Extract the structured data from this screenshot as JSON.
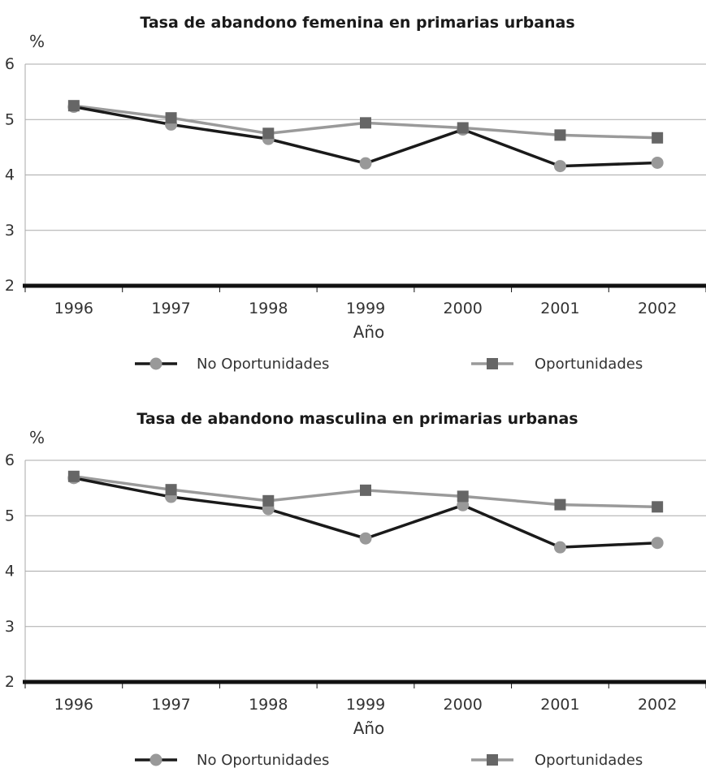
{
  "colors": {
    "no_oportunidades_line": "#1a1a1a",
    "no_oportunidades_marker": "#999999",
    "oportunidades_line": "#9a9a9a",
    "oportunidades_marker": "#666666",
    "gridline": "#aaaaaa",
    "axis": "#111111"
  },
  "chart_data": [
    {
      "type": "line",
      "title": "Tasa de abandono femenina en primarias urbanas",
      "ylabel": "%",
      "xlabel": "Año",
      "categories": [
        "1996",
        "1997",
        "1998",
        "1999",
        "2000",
        "2001",
        "2002"
      ],
      "ylim": [
        2,
        6
      ],
      "yticks": [
        "2",
        "3",
        "4",
        "5",
        "6"
      ],
      "grid": true,
      "legend_position": "bottom",
      "series": [
        {
          "name": "No Oportunidades",
          "marker": "circle",
          "values": [
            5.23,
            4.91,
            4.65,
            4.21,
            4.82,
            4.16,
            4.22
          ]
        },
        {
          "name": "Oportunidades",
          "marker": "square",
          "values": [
            5.25,
            5.03,
            4.75,
            4.94,
            4.85,
            4.72,
            4.67
          ]
        }
      ]
    },
    {
      "type": "line",
      "title": "Tasa de abandono masculina en primarias urbanas",
      "ylabel": "%",
      "xlabel": "Año",
      "categories": [
        "1996",
        "1997",
        "1998",
        "1999",
        "2000",
        "2001",
        "2002"
      ],
      "ylim": [
        2,
        6
      ],
      "yticks": [
        "2",
        "3",
        "4",
        "5",
        "6"
      ],
      "grid": true,
      "legend_position": "bottom",
      "series": [
        {
          "name": "No Oportunidades",
          "marker": "circle",
          "values": [
            5.68,
            5.34,
            5.12,
            4.59,
            5.19,
            4.43,
            4.51
          ]
        },
        {
          "name": "Oportunidades",
          "marker": "square",
          "values": [
            5.71,
            5.47,
            5.27,
            5.46,
            5.35,
            5.2,
            5.16
          ]
        }
      ]
    }
  ]
}
